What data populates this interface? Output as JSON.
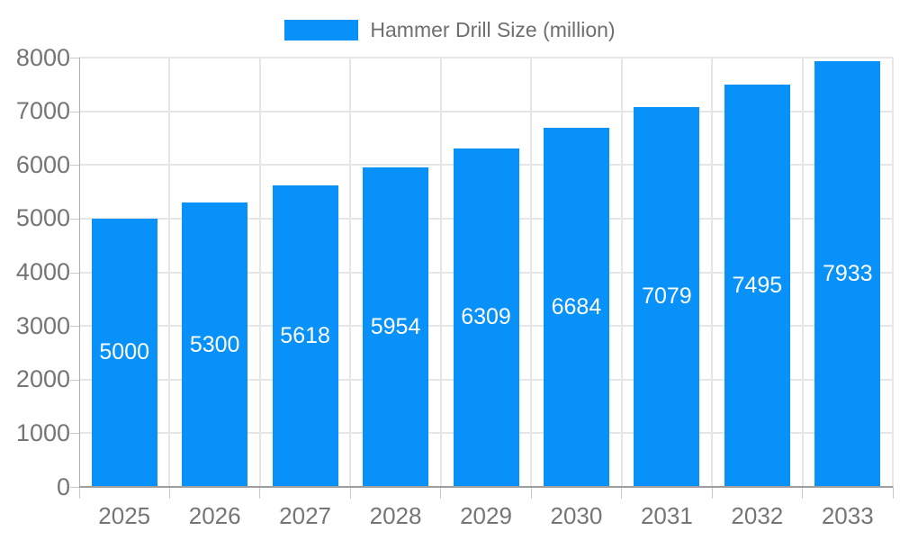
{
  "legend": {
    "label": "Hammer Drill Size (million)"
  },
  "colors": {
    "bar": "#0791f9",
    "barLabel": "#ffffff",
    "axisText": "#757575",
    "legendText": "#6e6e6e",
    "grid": "#e6e6e6",
    "tick": "#c8c8c8",
    "xAxisLine": "#9e9e9e",
    "yAxisLine": "#aeaeae"
  },
  "chart_data": {
    "type": "bar",
    "title": "Hammer Drill Size (million)",
    "categories": [
      "2025",
      "2026",
      "2027",
      "2028",
      "2029",
      "2030",
      "2031",
      "2032",
      "2033"
    ],
    "values": [
      5000,
      5300,
      5618,
      5954,
      6309,
      6684,
      7079,
      7495,
      7933
    ],
    "bar_labels": [
      "5000",
      "5300",
      "5618",
      "5954",
      "6309",
      "6684",
      "7079",
      "7495",
      "7933"
    ],
    "y_tick_labels": [
      "0",
      "1000",
      "2000",
      "3000",
      "4000",
      "5000",
      "6000",
      "7000",
      "8000"
    ],
    "xlabel": "",
    "ylabel": "",
    "ylim": [
      0,
      8000
    ],
    "ytick_step": 1000,
    "grid": true,
    "legend_position": "top",
    "legend_entries": [
      "Hammer Drill Size (million)"
    ]
  }
}
